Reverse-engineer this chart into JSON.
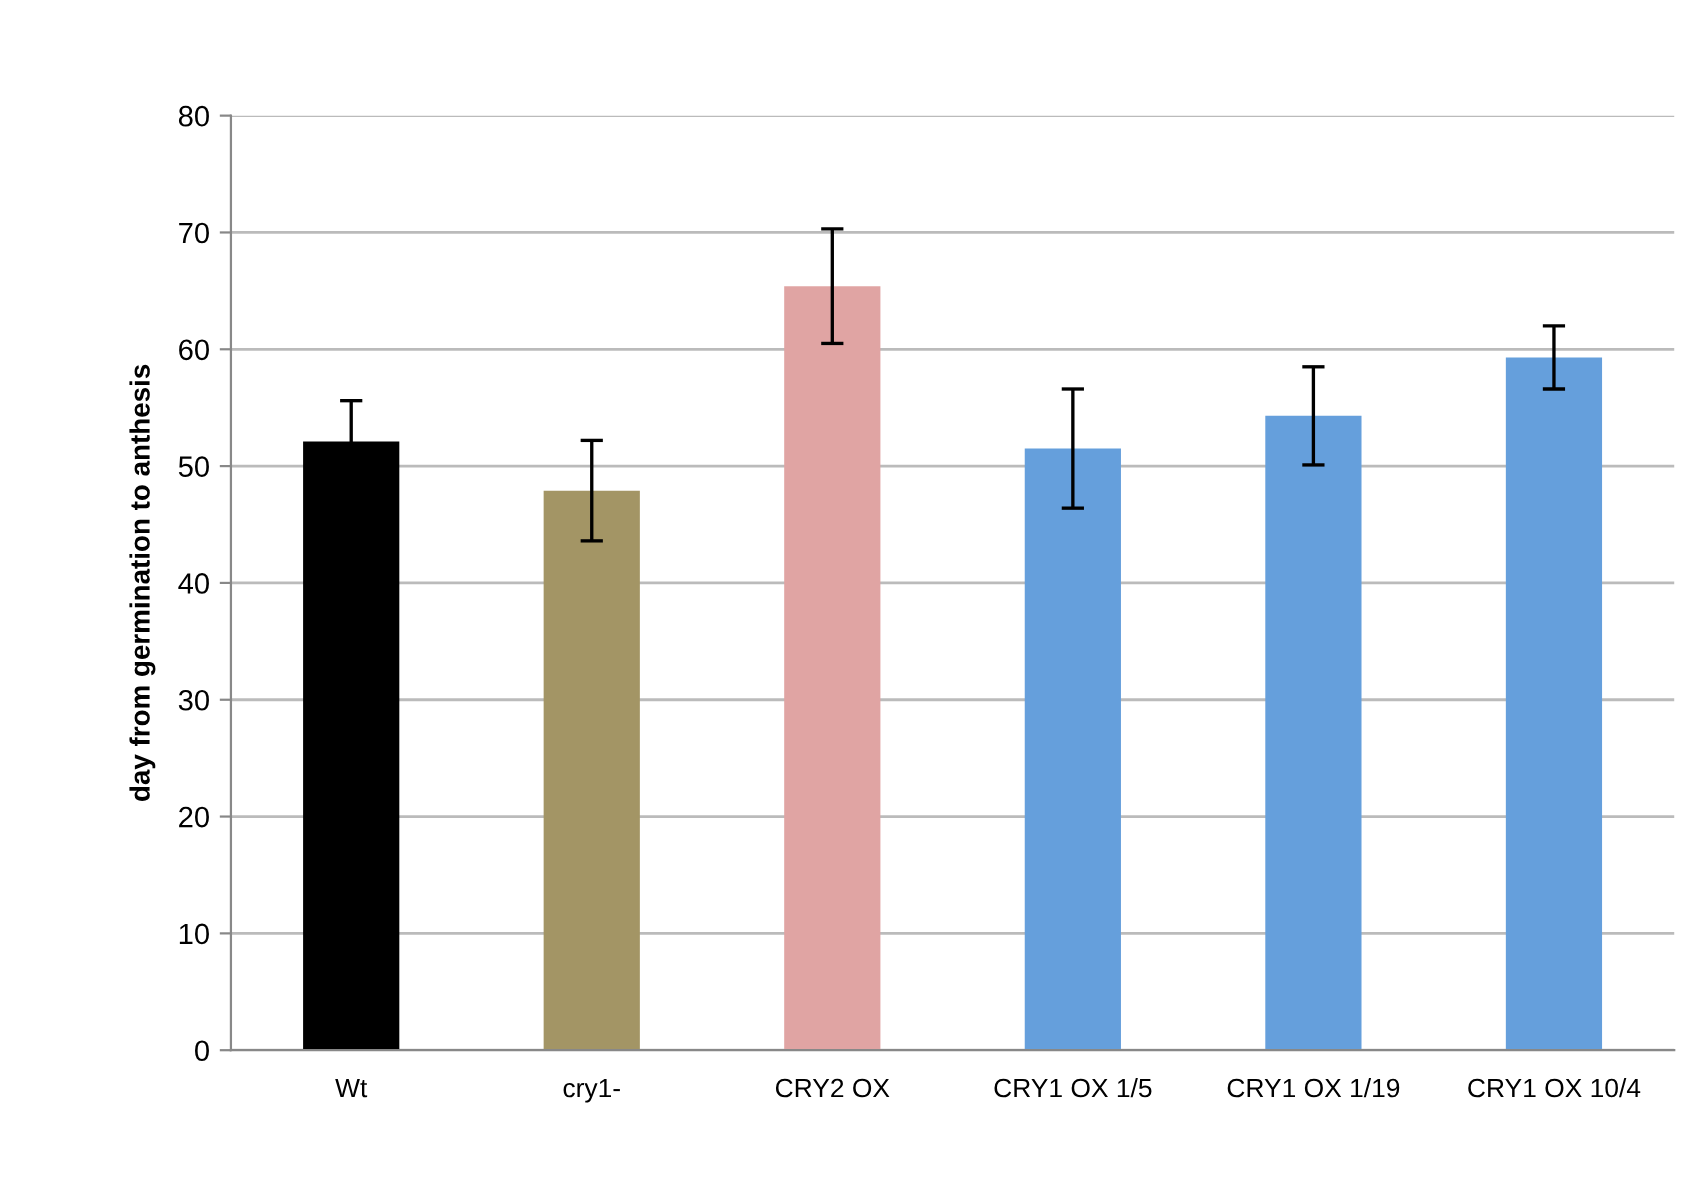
{
  "chart_data": {
    "type": "bar",
    "ylabel": "day from germination to anthesis",
    "categories": [
      "Wt",
      "cry1-",
      "CRY2 OX",
      "CRY1 OX 1/5",
      "CRY1 OX 1/19",
      "CRY1 OX 10/4"
    ],
    "values": [
      52.1,
      47.9,
      65.4,
      51.5,
      54.3,
      59.3
    ],
    "errors": [
      3.5,
      4.3,
      4.9,
      5.1,
      4.2,
      2.7
    ],
    "colors": [
      "#000000",
      "#a39565",
      "#e0a4a3",
      "#659fdc",
      "#659fdc",
      "#659fdc"
    ],
    "ylim": [
      0,
      80
    ],
    "yticks": [
      0,
      10,
      20,
      30,
      40,
      50,
      60,
      70,
      80
    ],
    "grid": "y"
  }
}
